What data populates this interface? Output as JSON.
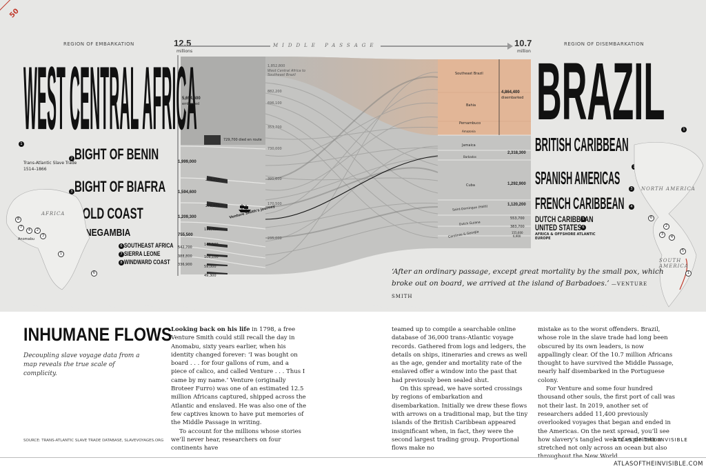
{
  "page": {
    "number": "50",
    "site": "ATLASOFTHEINVISIBLE.COM"
  },
  "graphic": {
    "embark_header": "REGION OF EMBARKATION",
    "disembark_header": "REGION OF DISEMBARKATION",
    "middle_passage": "MIDDLE PASSAGE",
    "total_embarked": "12.5",
    "total_embarked_unit": "millions",
    "total_disembarked": "10.7",
    "total_disembarked_unit": "million",
    "trade_label": "Trans-Atlantic Slave Trade",
    "trade_years": "1514–1866",
    "died_en_route": "729,700 died en route",
    "wca_embarked_value": "5,694,600",
    "wca_embarked_label": "embarked",
    "brazil_disembarked_value": "4,864,400",
    "brazil_disembarked_label": "disembarked",
    "venture_journey": "Venture Smith's journey",
    "flow_annotation_value": "1,852,800",
    "flow_annotation_text": "West Central Africa to Southeast Brazil",
    "flow_mid_values": [
      "882,200",
      "696,100",
      "353,700",
      "730,000",
      "391,600",
      "170,500",
      "235,000"
    ],
    "africa_label": "AFRICA",
    "north_america_label": "NORTH AMERICA",
    "south_america_label": "SOUTH AMERICA",
    "anomabu_label": "Anomabu"
  },
  "embark_regions": [
    {
      "num": "1",
      "name": "WEST CENTRAL AFRICA"
    },
    {
      "num": "2",
      "name": "BIGHT OF BENIN",
      "value": "1,999,000"
    },
    {
      "num": "3",
      "name": "BIGHT OF BIAFRA",
      "value": "1,594,600"
    },
    {
      "num": "4",
      "name": "GOLD COAST",
      "value": "1,209,300"
    },
    {
      "num": "5",
      "name": "SENEGAMBIA",
      "value": "755,500"
    },
    {
      "num": "6",
      "name": "SOUTHEAST AFRICA",
      "value": "542,700"
    },
    {
      "num": "7",
      "name": "SIERRA LEONE",
      "value": "388,800"
    },
    {
      "num": "8",
      "name": "WINDWARD COAST",
      "value": "336,900"
    }
  ],
  "embark_died": [
    "274,200",
    "276,800",
    "118,400",
    "143,500",
    "106,100",
    "59,000",
    "49,300"
  ],
  "disembark_regions": [
    {
      "num": "1",
      "name": "BRAZIL"
    },
    {
      "num": "2",
      "name": "BRITISH CARIBBEAN",
      "value": "2,318,300"
    },
    {
      "num": "3",
      "name": "SPANISH AMERICAS",
      "value": "1,292,900"
    },
    {
      "num": "4",
      "name": "FRENCH CARIBBEAN",
      "value": "1,120,200"
    },
    {
      "num": "5",
      "name": "DUTCH CARIBBEAN",
      "value": "553,700"
    },
    {
      "num": "6",
      "name": "UNITED STATES",
      "value": "383,700"
    },
    {
      "num": "7",
      "name": "AFRICA & OFFSHORE ATLANTIC",
      "value": "155,600"
    },
    {
      "num": "8",
      "name": "EUROPE",
      "value": "6,900"
    }
  ],
  "sub_regions": [
    "Southeast Brazil",
    "Bahia",
    "Pernambuco",
    "Amazonia",
    "Jamaica",
    "Barbados",
    "Cuba",
    "Saint-Domingue (Haiti)",
    "Dutch Guiana",
    "Carolinas & Georgia"
  ],
  "quote": {
    "text": "‘After an ordinary passage, except great mortality by the small pox, which broke out on board, we arrived at the island of Barbadoes.’",
    "attribution": "—VENTURE SMITH"
  },
  "article": {
    "title": "INHUMANE FLOWS",
    "subtitle": "Decoupling slave voyage data from a map reveals the true scale of complicity.",
    "lead": "Looking back on his life",
    "col1_p1": " in 1798, a free Venture Smith could still recall the day in Anomabu, sixty years earlier, when his identity changed forever: ‘I was bought on board . . . for four gallons of rum, and a piece of calico, and called Venture . . . Thus I came by my name.’ Venture (originally Broteer Furro) was one of an estimated 12.5 million Africans captured, shipped across the Atlantic and enslaved. He was also one of the few captives known to have put memories of the Middle Passage in writing.",
    "col1_p2": "To account for the millions whose stories we’ll never hear, researchers on four continents have",
    "col2_p1": "teamed up to compile a searchable online database of 36,000 trans-Atlantic voyage records. Gathered from logs and ledgers, the details on ships, itineraries and crews as well as the age, gender and mortality rate of the enslaved offer a window into the past that had previously been sealed shut.",
    "col2_p2": "On this spread, we have sorted crossings by regions of embarkation and disembarkation. Initially we drew these flows with arrows on a traditional map, but the tiny islands of the British Caribbean appeared insignificant when, in fact, they were the second largest trading group. Proportional flows make no",
    "col3_p1": "mistake as to the worst offenders. Brazil, whose role in the slave trade had long been obscured by its own leaders, is now appallingly clear. Of the 10.7 million Africans thought to have survived the Middle Passage, nearly half disembarked in the Portuguese colony.",
    "col3_p2": "For Venture and some four hundred thousand other souls, the first port of call was not their last. In 2019, another set of researchers added 11,400 previously overlooked voyages that began and ended in the Americas. On the next spread, you’ll see how slavery’s tangled web of exploitation stretched not only across an ocean but also throughout the New World."
  },
  "footer": {
    "source": "SOURCE: TRANS-ATLANTIC SLAVE TRADE DATABASE, SLAVEVOYAGES.ORG",
    "book": "ATLAS OF THE INVISIBLE"
  },
  "colors": {
    "brazil_flow": "#e2b697",
    "flow_gray": "#b9b9b7",
    "accent": "#c0392b"
  }
}
